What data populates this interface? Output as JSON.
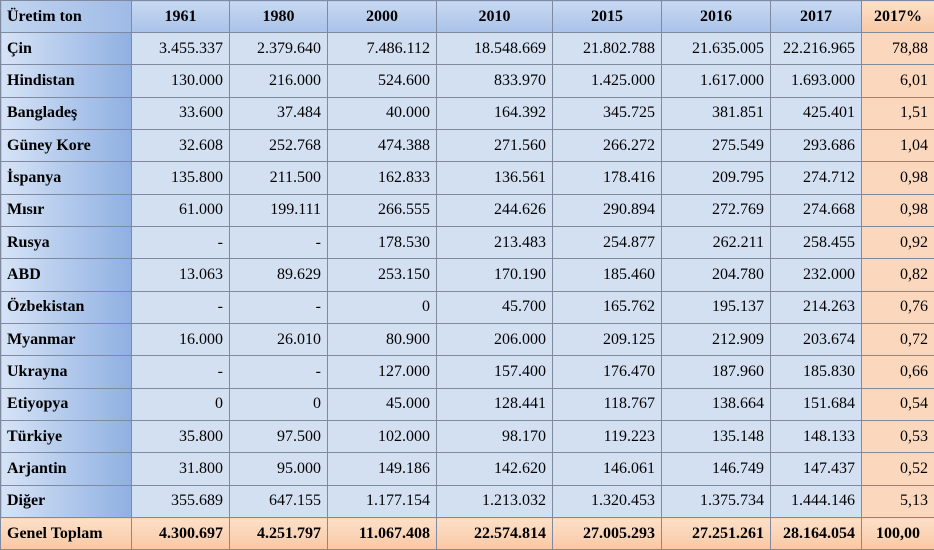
{
  "table": {
    "header": {
      "label": "Üretim ton",
      "years": [
        "1961",
        "1980",
        "2000",
        "2010",
        "2015",
        "2016",
        "2017"
      ],
      "pct": "2017%"
    },
    "rows": [
      {
        "country": "Çin",
        "values": [
          "3.455.337",
          "2.379.640",
          "7.486.112",
          "18.548.669",
          "21.802.788",
          "21.635.005",
          "22.216.965"
        ],
        "pct": "78,88"
      },
      {
        "country": "Hindistan",
        "values": [
          "130.000",
          "216.000",
          "524.600",
          "833.970",
          "1.425.000",
          "1.617.000",
          "1.693.000"
        ],
        "pct": "6,01"
      },
      {
        "country": "Bangladeş",
        "values": [
          "33.600",
          "37.484",
          "40.000",
          "164.392",
          "345.725",
          "381.851",
          "425.401"
        ],
        "pct": "1,51"
      },
      {
        "country": "Güney Kore",
        "values": [
          "32.608",
          "252.768",
          "474.388",
          "271.560",
          "266.272",
          "275.549",
          "293.686"
        ],
        "pct": "1,04"
      },
      {
        "country": "İspanya",
        "values": [
          "135.800",
          "211.500",
          "162.833",
          "136.561",
          "178.416",
          "209.795",
          "274.712"
        ],
        "pct": "0,98"
      },
      {
        "country": "Mısır",
        "values": [
          "61.000",
          "199.111",
          "266.555",
          "244.626",
          "290.894",
          "272.769",
          "274.668"
        ],
        "pct": "0,98"
      },
      {
        "country": "Rusya",
        "values": [
          "-",
          "-",
          "178.530",
          "213.483",
          "254.877",
          "262.211",
          "258.455"
        ],
        "pct": "0,92"
      },
      {
        "country": "ABD",
        "values": [
          "13.063",
          "89.629",
          "253.150",
          "170.190",
          "185.460",
          "204.780",
          "232.000"
        ],
        "pct": "0,82"
      },
      {
        "country": "Özbekistan",
        "values": [
          "-",
          "-",
          "0",
          "45.700",
          "165.762",
          "195.137",
          "214.263"
        ],
        "pct": "0,76"
      },
      {
        "country": "Myanmar",
        "values": [
          "16.000",
          "26.010",
          "80.900",
          "206.000",
          "209.125",
          "212.909",
          "203.674"
        ],
        "pct": "0,72"
      },
      {
        "country": "Ukrayna",
        "values": [
          "-",
          "-",
          "127.000",
          "157.400",
          "176.470",
          "187.960",
          "185.830"
        ],
        "pct": "0,66"
      },
      {
        "country": "Etiyopya",
        "values": [
          "0",
          "0",
          "45.000",
          "128.441",
          "118.767",
          "138.664",
          "151.684"
        ],
        "pct": "0,54"
      },
      {
        "country": "Türkiye",
        "values": [
          "35.800",
          "97.500",
          "102.000",
          "98.170",
          "119.223",
          "135.148",
          "148.133"
        ],
        "pct": "0,53"
      },
      {
        "country": "Arjantin",
        "values": [
          "31.800",
          "95.000",
          "149.186",
          "142.620",
          "146.061",
          "146.749",
          "147.437"
        ],
        "pct": "0,52"
      },
      {
        "country": "Diğer",
        "values": [
          "355.689",
          "647.155",
          "1.177.154",
          "1.213.032",
          "1.320.453",
          "1.375.734",
          "1.444.146"
        ],
        "pct": "5,13"
      }
    ],
    "total": {
      "label": "Genel Toplam",
      "values": [
        "4.300.697",
        "4.251.797",
        "11.067.408",
        "22.574.814",
        "27.005.293",
        "27.251.261",
        "28.164.054"
      ],
      "pct": "100,00"
    }
  }
}
